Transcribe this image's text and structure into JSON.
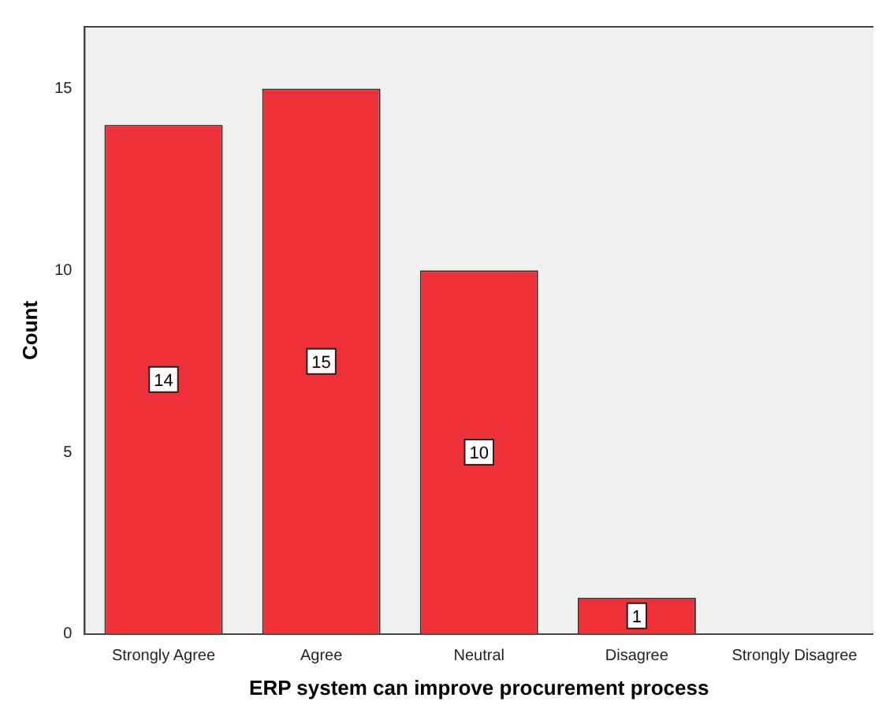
{
  "chart_data": {
    "type": "bar",
    "xlabel": "ERP system can improve procurement process",
    "ylabel": "Count",
    "categories": [
      "Strongly Agree",
      "Agree",
      "Neutral",
      "Disagree",
      "Strongly Disagree"
    ],
    "values": [
      14,
      15,
      10,
      1,
      0
    ],
    "color": "#ee3039",
    "value_labels": [
      "14",
      "15",
      "10",
      "1",
      null
    ],
    "ylim": [
      0,
      16.7
    ],
    "yticks": [
      0,
      5,
      10,
      15
    ],
    "grid": false,
    "legend": false
  }
}
